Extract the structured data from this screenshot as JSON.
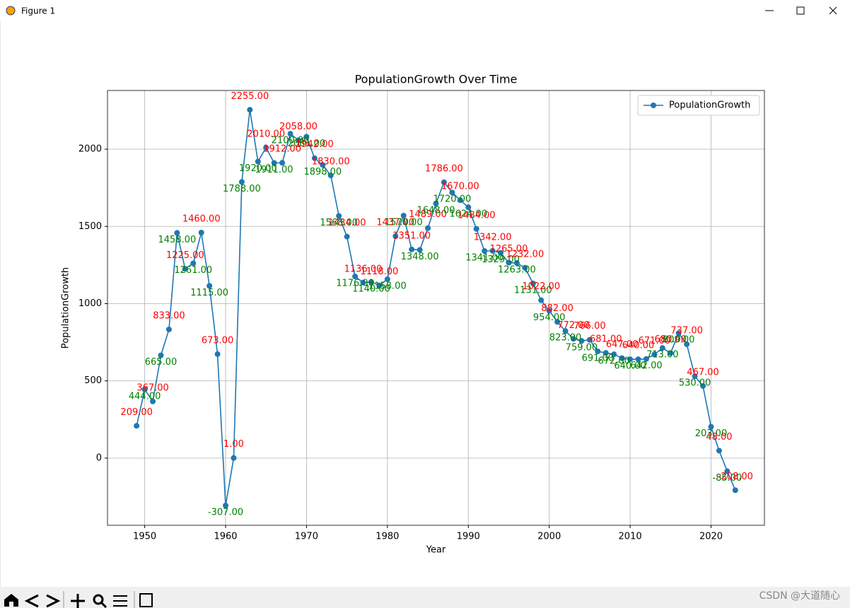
{
  "window": {
    "title": "Figure 1"
  },
  "chart_data": {
    "type": "line",
    "title": "PopulationGrowth Over Time",
    "x_label": "Year",
    "y_label": "PopulationGrowth",
    "x": [
      1949,
      1950,
      1951,
      1952,
      1953,
      1954,
      1955,
      1956,
      1957,
      1958,
      1959,
      1960,
      1961,
      1962,
      1963,
      1964,
      1965,
      1966,
      1967,
      1968,
      1969,
      1970,
      1971,
      1972,
      1973,
      1974,
      1975,
      1976,
      1977,
      1978,
      1979,
      1980,
      1981,
      1982,
      1983,
      1984,
      1985,
      1986,
      1987,
      1988,
      1989,
      1990,
      1991,
      1992,
      1993,
      1994,
      1995,
      1996,
      1997,
      1998,
      1999,
      2000,
      2001,
      2002,
      2003,
      2004,
      2005,
      2006,
      2007,
      2008,
      2009,
      2010,
      2011,
      2012,
      2013,
      2014,
      2015,
      2016,
      2017,
      2018,
      2019,
      2020,
      2021,
      2022,
      2023
    ],
    "series": [
      {
        "name": "PopulationGrowth",
        "color": "#1f77b4",
        "values": [
          209,
          444,
          367,
          665,
          833,
          1458,
          1225,
          1261,
          1460,
          1115,
          673,
          -307,
          1,
          1788,
          2255,
          1920,
          2010,
          1911,
          1912,
          2100,
          2058,
          2081,
          1942,
          1898,
          1830,
          1568,
          1434,
          1176,
          1136,
          1140,
          1118,
          1158,
          1437,
          1570,
          1351,
          1348,
          1489,
          1648,
          1786,
          1720,
          1670,
          1624,
          1484,
          1341,
          1342,
          1329,
          1265,
          1263,
          1232,
          1131,
          1022,
          954,
          882,
          823,
          772,
          759,
          766,
          691,
          681,
          672,
          647,
          640,
          640,
          642,
          671,
          713,
          680,
          809,
          737,
          530,
          467,
          203,
          48,
          -85,
          -208
        ],
        "value_labels": [
          "209.00",
          "444.00",
          "367.00",
          "665.00",
          "833.00",
          "1458.00",
          "1225.00",
          "1261.00",
          "1460.00",
          "1115.00",
          "673.00",
          "-307.00",
          "1.00",
          "1788.00",
          "2255.00",
          "1920.00",
          "2010.00",
          "1911.00",
          "1912.00",
          "2100.00",
          "2058.00",
          "2081.00",
          "1942.00",
          "1898.00",
          "1830.00",
          "1568.00",
          "1434.00",
          "1176.00",
          "1136.00",
          "1140.00",
          "1118.00",
          "1158.00",
          "1437.00",
          "1570.00",
          "1351.00",
          "1348.00",
          "1489.00",
          "1648.00",
          "1786.00",
          "1720.00",
          "1670.00",
          "1624.00",
          "1484.00",
          "1341.00",
          "1342.00",
          "1329.00",
          "1265.00",
          "1263.00",
          "1232.00",
          "1131.00",
          "1022.00",
          "954.00",
          "882.00",
          "823.00",
          "772.00",
          "759.00",
          "766.00",
          "691.00",
          "681.00",
          "672.00",
          "647.00",
          "640.00",
          "640.00",
          "642.00",
          "671.00",
          "713.00",
          "680.00",
          "809.00",
          "737.00",
          "530.00",
          "467.00",
          "203.00",
          "48.00",
          "-85.00",
          "-208.00"
        ]
      }
    ],
    "label_colors": [
      "red",
      "green"
    ],
    "xlim": [
      1945.4,
      2026.6
    ],
    "ylim": [
      -435,
      2380
    ],
    "xticks": [
      1950,
      1960,
      1970,
      1980,
      1990,
      2000,
      2010,
      2020
    ],
    "yticks": [
      0,
      500,
      1000,
      1500,
      2000
    ],
    "grid": true,
    "legend": "upper right"
  },
  "watermark": "CSDN @大道随心"
}
